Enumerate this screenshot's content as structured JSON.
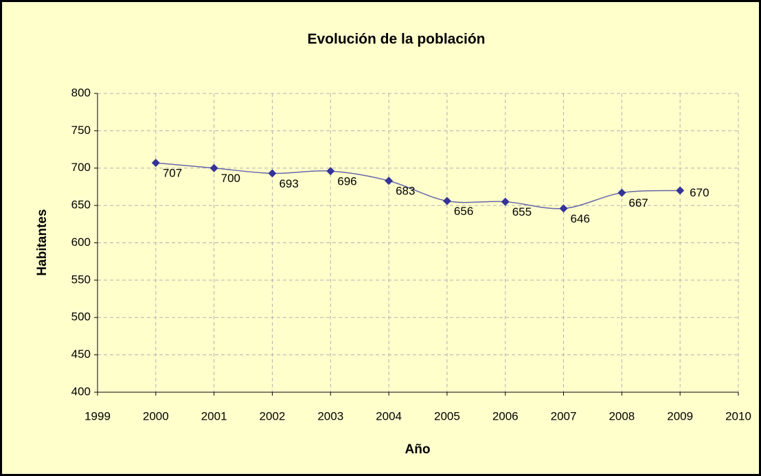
{
  "chart_data": {
    "type": "line",
    "title": "Evolución de la población",
    "x_label": "Año",
    "y_label": "Habitantes",
    "x": [
      2000,
      2001,
      2002,
      2003,
      2004,
      2005,
      2006,
      2007,
      2008,
      2009
    ],
    "series": [
      {
        "name": "Habitantes",
        "color": "#333399",
        "values": [
          707,
          700,
          693,
          696,
          683,
          656,
          655,
          646,
          667,
          670
        ]
      }
    ],
    "xlim": [
      1999,
      2010
    ],
    "xticks": [
      1999,
      2000,
      2001,
      2002,
      2003,
      2004,
      2005,
      2006,
      2007,
      2008,
      2009,
      2010
    ],
    "ylim": [
      400,
      800
    ],
    "yticks": [
      400,
      450,
      500,
      550,
      600,
      650,
      700,
      750,
      800
    ],
    "grid": true,
    "smooth": true
  }
}
